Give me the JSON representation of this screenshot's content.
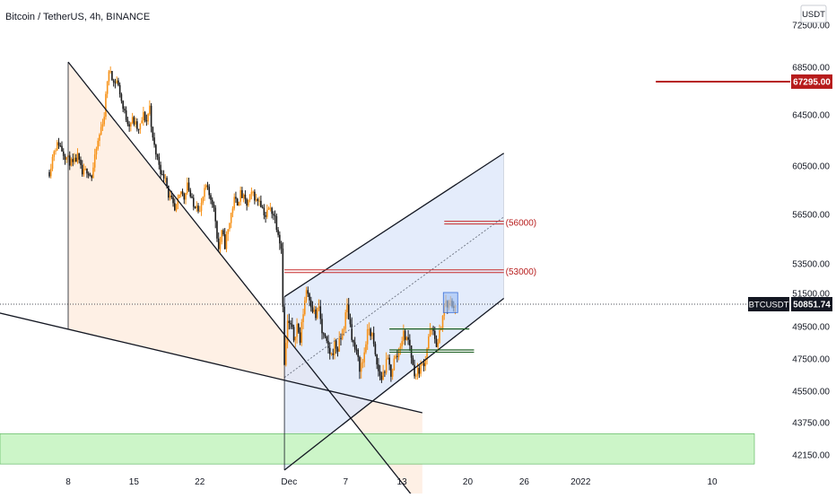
{
  "chart_data": {
    "type": "candlestick",
    "title": "Bitcoin / TetherUS, 4h, BINANCE",
    "currency": "USDT",
    "symbol": "BTCUSDT",
    "last_price": "50851.74",
    "last_price_value": 50851.74,
    "price_label": "67295.00",
    "price_label_value": 67295,
    "y_ticks": [
      "72500.00",
      "68500.00",
      "64500.00",
      "60500.00",
      "56500.00",
      "53500.00",
      "51500.00",
      "49500.00",
      "47500.00",
      "45500.00",
      "43750.00",
      "42150.00"
    ],
    "y_tick_values": [
      72500,
      68500,
      64500,
      60500,
      56500,
      53500,
      51500,
      49500,
      47500,
      45500,
      43750,
      42150
    ],
    "x_ticks": [
      {
        "label": "8",
        "bar": 0
      },
      {
        "label": "15",
        "bar": 42
      },
      {
        "label": "22",
        "bar": 84
      },
      {
        "label": "Dec",
        "bar": 141
      },
      {
        "label": "7",
        "bar": 177
      },
      {
        "label": "13",
        "bar": 213
      },
      {
        "label": "20",
        "bar": 255
      },
      {
        "label": "26",
        "bar": 291
      },
      {
        "label": "2022",
        "bar": 327
      },
      {
        "label": "10",
        "bar": 411
      }
    ],
    "levels": [
      {
        "label": "(56000)",
        "value": 56000
      },
      {
        "label": "(53000)",
        "value": 53000
      }
    ],
    "support_lines": [
      49300,
      48000
    ],
    "support_zone": [
      41700,
      43200
    ],
    "close_path": [
      [
        -12,
        60000
      ],
      [
        -9,
        61800
      ],
      [
        -6,
        62300
      ],
      [
        -3,
        61500
      ],
      [
        0,
        61000
      ],
      [
        3,
        60600
      ],
      [
        6,
        61200
      ],
      [
        9,
        59800
      ],
      [
        12,
        60200
      ],
      [
        15,
        59600
      ],
      [
        18,
        61800
      ],
      [
        21,
        63500
      ],
      [
        23,
        64500
      ],
      [
        25,
        67500
      ],
      [
        27,
        68300
      ],
      [
        29,
        67200
      ],
      [
        31,
        67400
      ],
      [
        33,
        66400
      ],
      [
        35,
        65000
      ],
      [
        37,
        64300
      ],
      [
        39,
        63800
      ],
      [
        41,
        64100
      ],
      [
        43,
        63700
      ],
      [
        45,
        63200
      ],
      [
        48,
        64500
      ],
      [
        50,
        64000
      ],
      [
        52,
        65200
      ],
      [
        54,
        62500
      ],
      [
        56,
        61500
      ],
      [
        58,
        60700
      ],
      [
        60,
        59600
      ],
      [
        62,
        59800
      ],
      [
        64,
        58100
      ],
      [
        66,
        57600
      ],
      [
        68,
        56700
      ],
      [
        70,
        57500
      ],
      [
        72,
        58400
      ],
      [
        74,
        57900
      ],
      [
        76,
        59200
      ],
      [
        78,
        58000
      ],
      [
        80,
        57100
      ],
      [
        82,
        57500
      ],
      [
        84,
        56700
      ],
      [
        86,
        57900
      ],
      [
        88,
        58800
      ],
      [
        90,
        58100
      ],
      [
        92,
        57600
      ],
      [
        94,
        56200
      ],
      [
        96,
        54400
      ],
      [
        98,
        55300
      ],
      [
        100,
        54700
      ],
      [
        102,
        55500
      ],
      [
        104,
        56600
      ],
      [
        106,
        57700
      ],
      [
        108,
        57500
      ],
      [
        110,
        58200
      ],
      [
        112,
        57800
      ],
      [
        114,
        57300
      ],
      [
        116,
        57900
      ],
      [
        118,
        58300
      ],
      [
        120,
        57600
      ],
      [
        122,
        57800
      ],
      [
        124,
        57000
      ],
      [
        126,
        56400
      ],
      [
        128,
        57000
      ],
      [
        130,
        56800
      ],
      [
        132,
        56300
      ],
      [
        134,
        55500
      ],
      [
        136,
        54500
      ],
      [
        137,
        51000
      ],
      [
        138,
        47000
      ],
      [
        139,
        48500
      ],
      [
        140,
        49700
      ],
      [
        142,
        49500
      ],
      [
        144,
        48800
      ],
      [
        146,
        49600
      ],
      [
        148,
        48600
      ],
      [
        150,
        50400
      ],
      [
        152,
        51800
      ],
      [
        154,
        51300
      ],
      [
        156,
        50600
      ],
      [
        158,
        50100
      ],
      [
        160,
        50700
      ],
      [
        162,
        49100
      ],
      [
        164,
        48600
      ],
      [
        166,
        48100
      ],
      [
        168,
        47700
      ],
      [
        170,
        48400
      ],
      [
        172,
        48100
      ],
      [
        174,
        48800
      ],
      [
        176,
        49600
      ],
      [
        178,
        50700
      ],
      [
        180,
        49600
      ],
      [
        182,
        48400
      ],
      [
        184,
        47800
      ],
      [
        186,
        47000
      ],
      [
        188,
        47300
      ],
      [
        190,
        48600
      ],
      [
        192,
        49400
      ],
      [
        194,
        48900
      ],
      [
        196,
        47600
      ],
      [
        198,
        46700
      ],
      [
        200,
        46300
      ],
      [
        202,
        46900
      ],
      [
        204,
        47400
      ],
      [
        206,
        46600
      ],
      [
        208,
        47400
      ],
      [
        210,
        47700
      ],
      [
        212,
        48500
      ],
      [
        214,
        49000
      ],
      [
        216,
        48800
      ],
      [
        218,
        48400
      ],
      [
        220,
        47000
      ],
      [
        222,
        46500
      ],
      [
        224,
        46900
      ],
      [
        226,
        47100
      ],
      [
        228,
        47600
      ],
      [
        230,
        48900
      ],
      [
        232,
        49300
      ],
      [
        234,
        48700
      ],
      [
        236,
        48300
      ],
      [
        238,
        49700
      ],
      [
        240,
        50700
      ],
      [
        241,
        50900
      ],
      [
        242,
        50700
      ],
      [
        244,
        50900
      ],
      [
        246,
        50800
      ],
      [
        247,
        50851
      ]
    ],
    "trendlines": [
      {
        "name": "upper-falling",
        "from": [
          0,
          69000
        ],
        "to": [
          226,
          39500
        ]
      },
      {
        "name": "lower-falling",
        "from": [
          -25,
          49900
        ],
        "to": [
          226,
          44300
        ]
      },
      {
        "name": "channel-lower",
        "from": [
          138,
          41400
        ],
        "to": [
          278,
          51200
        ]
      },
      {
        "name": "channel-upper",
        "from": [
          138,
          51300
        ],
        "to": [
          278,
          61500
        ]
      },
      {
        "name": "channel-mid",
        "from": [
          138,
          46350
        ],
        "to": [
          278,
          56350
        ]
      },
      {
        "name": "target-line",
        "from": [
          226,
          53000
        ],
        "to": [
          278,
          53000
        ]
      }
    ]
  }
}
